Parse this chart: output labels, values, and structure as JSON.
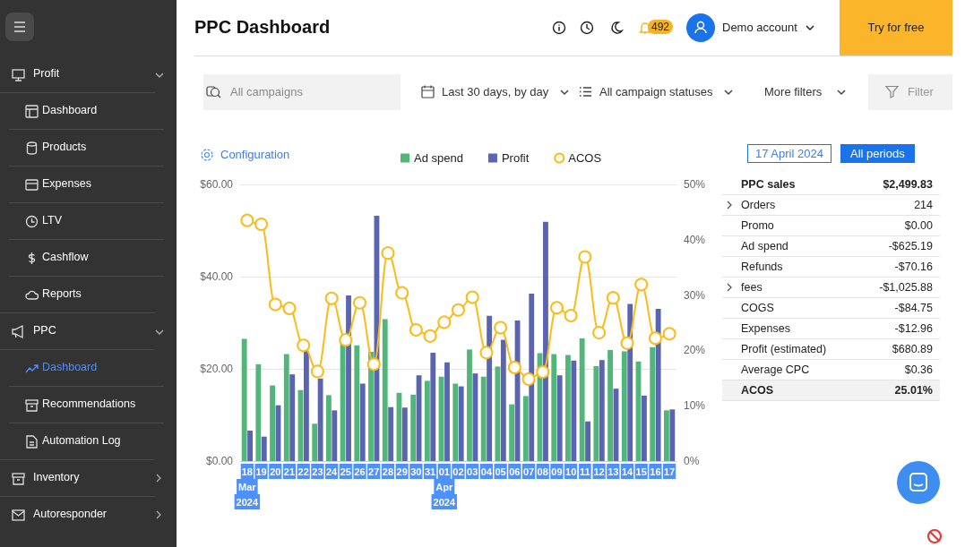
{
  "chart_data": [
    {
      "type": "bar",
      "title": "PPC Dashboard",
      "categories": [
        "18\nMar\n2024",
        "19",
        "20",
        "21",
        "22",
        "23",
        "24",
        "25",
        "26",
        "27",
        "28",
        "29",
        "30",
        "31",
        "01\nApr\n2024",
        "02",
        "03",
        "04",
        "05",
        "06",
        "07",
        "08",
        "09",
        "10",
        "11",
        "12",
        "13",
        "14",
        "15",
        "16",
        "17"
      ],
      "series": [
        {
          "name": "Ad spend",
          "color": "#52b67a",
          "values": [
            26.5,
            21.0,
            16.4,
            23.2,
            15.4,
            8.1,
            14.3,
            25.6,
            25.1,
            23.7,
            30.8,
            14.8,
            14.4,
            17.4,
            18.3,
            16.8,
            24.2,
            18.3,
            20.5,
            12.3,
            14.1,
            23.4,
            23.2,
            23.0,
            26.6,
            20.6,
            24.1,
            23.8,
            21.6,
            24.7,
            11.0
          ]
        },
        {
          "name": "Profit",
          "color": "#5b64b0",
          "values": [
            6.6,
            5.3,
            12.1,
            18.8,
            23.9,
            17.9,
            11.0,
            35.9,
            16.8,
            53.2,
            11.7,
            11.6,
            18.6,
            23.5,
            21.4,
            16.2,
            19.0,
            31.5,
            26.3,
            30.5,
            36.3,
            51.9,
            18.6,
            21.8,
            8.6,
            21.9,
            15.7,
            34.1,
            14.2,
            33.0,
            11.2
          ]
        },
        {
          "name": "ACOS",
          "type": "line",
          "axis": "y2",
          "color": "#fbbc1a",
          "values": [
            43.5,
            42.8,
            28.3,
            27.6,
            20.9,
            16.2,
            29.4,
            21.9,
            28.6,
            17.5,
            37.6,
            30.4,
            23.7,
            22.6,
            25.1,
            27.3,
            29.6,
            19.6,
            24.1,
            16.9,
            14.8,
            16.1,
            27.7,
            26.3,
            36.9,
            23.2,
            29.5,
            21.3,
            31.9,
            22.2,
            23.0
          ]
        }
      ],
      "ylim": [
        0,
        60
      ],
      "yticks": [
        {
          "value": 0,
          "label": "$0.00"
        },
        {
          "value": 20,
          "label": "$20.00"
        },
        {
          "value": 40,
          "label": "$40.00"
        },
        {
          "value": 60,
          "label": "$60.00"
        }
      ],
      "y2lim": [
        0,
        50
      ],
      "y2ticks": [
        {
          "value": 0,
          "label": "0%"
        },
        {
          "value": 10,
          "label": "10%"
        },
        {
          "value": 20,
          "label": "20%"
        },
        {
          "value": 30,
          "label": "30%"
        },
        {
          "value": 40,
          "label": "40%"
        },
        {
          "value": 50,
          "label": "50%"
        }
      ],
      "grid": "y",
      "legend": "top",
      "marker": "circle"
    },
    {
      "type": "other",
      "categories": [
        "PPC sales",
        "Orders",
        "Promo",
        "Ad spend",
        "Refunds",
        "fees",
        "COGS",
        "Expenses",
        "Profit (estimated)",
        "Average CPC",
        "ACOS"
      ],
      "value_labels": [
        "$2,499.83",
        "214",
        "$0.00",
        "-$625.19",
        "-$70.16",
        "-$1,025.88",
        "-$84.75",
        "-$12.96",
        "$680.89",
        "$0.36",
        "25.01%"
      ]
    },
    {
      "type": "other",
      "annotations": [
        "492",
        "Demo account",
        "Try for free",
        "All campaigns",
        "Last 30 days, by day",
        "All campaign statuses",
        "More filters",
        "Filter",
        "Configuration",
        "17 April 2024",
        "All periods"
      ]
    },
    {
      "type": "other",
      "categories": [
        "Profit",
        "Dashboard",
        "Products",
        "Expenses",
        "LTV",
        "Cashflow",
        "Reports",
        "PPC",
        "Dashboard",
        "Recommendations",
        "Automation Log",
        "Inventory",
        "Autoresponder"
      ]
    }
  ]
}
